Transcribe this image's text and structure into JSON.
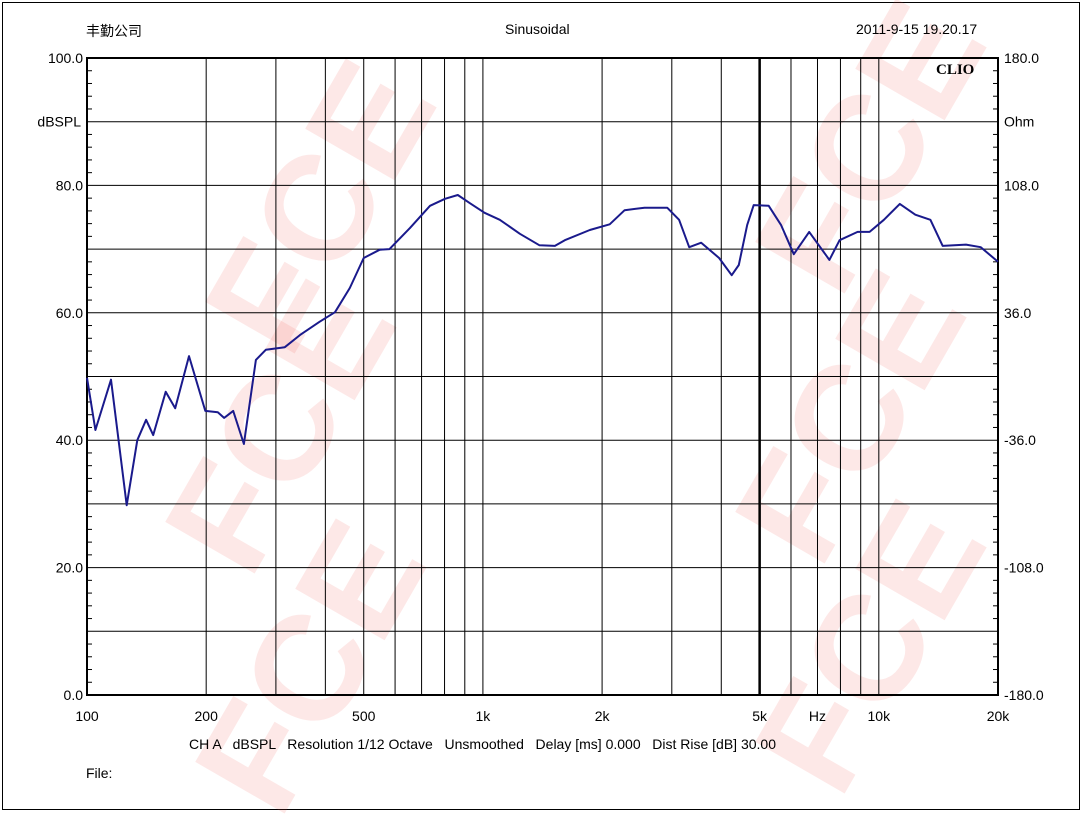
{
  "header": {
    "company": "丰勤公司",
    "mode": "Sinusoidal",
    "timestamp": "2011-9-15 19.20.17",
    "brand": "CLIO"
  },
  "footer": {
    "info": "CH A   dBSPL   Resolution 1/12 Octave   Unsmoothed   Delay [ms] 0.000   Dist Rise [dB] 30.00",
    "file_label": "File:"
  },
  "watermark": "FCE®",
  "colors": {
    "curve": "#1a1a8c",
    "grid": "#000000"
  },
  "chart_data": {
    "type": "line",
    "title": "Sinusoidal",
    "xlabel": "Hz",
    "ylabel": "dBSPL",
    "y2label": "Ohm",
    "xscale": "log",
    "xlim": [
      100,
      20000
    ],
    "ylim": [
      0,
      100
    ],
    "y2lim": [
      -180,
      180
    ],
    "grid": true,
    "x_tick_labels": [
      {
        "v": 100,
        "t": "100"
      },
      {
        "v": 200,
        "t": "200"
      },
      {
        "v": 500,
        "t": "500"
      },
      {
        "v": 1000,
        "t": "1k"
      },
      {
        "v": 2000,
        "t": "2k"
      },
      {
        "v": 5000,
        "t": "5k"
      },
      {
        "v": 10000,
        "t": "10k"
      },
      {
        "v": 20000,
        "t": "20k"
      }
    ],
    "y_tick_labels": [
      {
        "v": 100,
        "t": "100.0"
      },
      {
        "v": 80,
        "t": "80.0"
      },
      {
        "v": 60,
        "t": "60.0"
      },
      {
        "v": 40,
        "t": "40.0"
      },
      {
        "v": 20,
        "t": "20.0"
      },
      {
        "v": 0,
        "t": "0.0"
      }
    ],
    "y2_tick_labels": [
      {
        "v": 100,
        "t": "180.0"
      },
      {
        "v": 80,
        "t": "108.0"
      },
      {
        "v": 60,
        "t": "36.0"
      },
      {
        "v": 40,
        "t": "-36.0"
      },
      {
        "v": 20,
        "t": "-108.0"
      },
      {
        "v": 0,
        "t": "-180.0"
      }
    ],
    "series": [
      {
        "name": "CH A dBSPL",
        "x": [
          100,
          105,
          115,
          126,
          134,
          141,
          147,
          158,
          167,
          181,
          199,
          214,
          222,
          234,
          249,
          267,
          283,
          316,
          345,
          387,
          423,
          461,
          500,
          549,
          581,
          654,
          735,
          802,
          864,
          927,
          1010,
          1103,
          1240,
          1390,
          1520,
          1610,
          1862,
          2090,
          2280,
          2560,
          2920,
          3130,
          3320,
          3560,
          3950,
          4250,
          4430,
          4650,
          4830,
          5270,
          5660,
          6100,
          6670,
          7500,
          7960,
          8840,
          9480,
          10300,
          11300,
          12360,
          13500,
          14500,
          16600,
          18100,
          20000
        ],
        "y": [
          49.8,
          41.6,
          49.5,
          29.8,
          40,
          43.2,
          40.8,
          47.6,
          45,
          53.2,
          44.6,
          44.4,
          43.5,
          44.6,
          39.4,
          52.6,
          54.2,
          54.6,
          56.5,
          58.6,
          60.1,
          63.9,
          68.6,
          69.9,
          70,
          73.3,
          76.8,
          77.9,
          78.5,
          77.2,
          75.7,
          74.6,
          72.4,
          70.6,
          70.5,
          71.4,
          73,
          73.9,
          76.1,
          76.5,
          76.5,
          74.6,
          70.3,
          71,
          68.6,
          65.9,
          67.5,
          73.8,
          76.9,
          76.8,
          73.8,
          69.2,
          72.7,
          68.3,
          71.4,
          72.7,
          72.7,
          74.6,
          77.1,
          75.4,
          74.6,
          70.5,
          70.7,
          70.3,
          68
        ]
      }
    ]
  }
}
